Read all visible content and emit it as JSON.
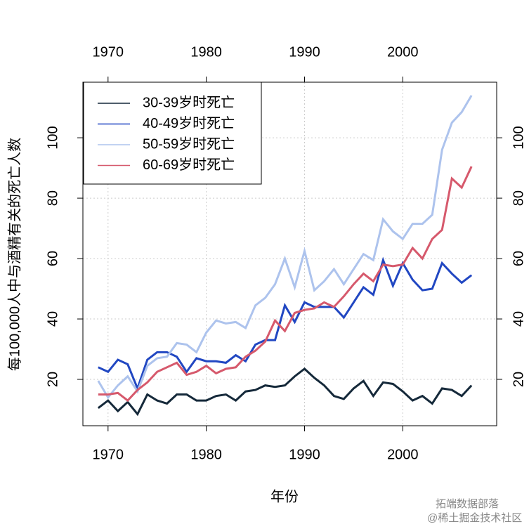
{
  "chart_data": {
    "type": "line",
    "x_label": "年份",
    "y_label": "每100,000人中与酒精有关的死亡人数",
    "x": [
      1969,
      1970,
      1971,
      1972,
      1973,
      1974,
      1975,
      1976,
      1977,
      1978,
      1979,
      1980,
      1981,
      1982,
      1983,
      1984,
      1985,
      1986,
      1987,
      1988,
      1989,
      1990,
      1991,
      1992,
      1993,
      1994,
      1995,
      1996,
      1997,
      1998,
      1999,
      2000,
      2001,
      2002,
      2003,
      2004,
      2005,
      2006,
      2007
    ],
    "series": [
      {
        "name": "30-39岁时死亡",
        "color": "#15293a",
        "values": [
          10.5,
          13,
          9.5,
          12.5,
          8.5,
          15,
          13,
          12,
          15,
          15,
          13,
          13,
          14.5,
          15,
          13,
          16,
          16.5,
          18,
          17.5,
          18,
          21,
          23.5,
          20.5,
          18,
          14.5,
          13.5,
          17,
          19.5,
          14.5,
          19,
          18.5,
          16,
          13,
          14.5,
          12,
          17,
          16.5,
          14.5,
          18
        ]
      },
      {
        "name": "40-49岁时死亡",
        "color": "#2147c2",
        "values": [
          24,
          22.5,
          26.5,
          25,
          17,
          26.5,
          29,
          29,
          27.5,
          22.5,
          27,
          26,
          26,
          25.5,
          28,
          26,
          31.5,
          33,
          33,
          44.5,
          39,
          45.5,
          44,
          44,
          44,
          40.5,
          45.5,
          50.5,
          48,
          59.5,
          51,
          58.5,
          53,
          49.5,
          50,
          58.5,
          55,
          52,
          54.5
        ]
      },
      {
        "name": "50-59岁时死亡",
        "color": "#adc3ed",
        "values": [
          19.5,
          14,
          18,
          21,
          16,
          24.5,
          27,
          27.5,
          32,
          31.5,
          29,
          35.5,
          39.5,
          38.5,
          39,
          37,
          44.5,
          47,
          51.5,
          60,
          50.5,
          62.5,
          49.5,
          52.5,
          56.5,
          51.5,
          56.5,
          61.5,
          59.5,
          73,
          69,
          66.5,
          71.5,
          71.5,
          74.5,
          96,
          105,
          108.5,
          114
        ]
      },
      {
        "name": "60-69岁时死亡",
        "color": "#d6596c",
        "values": [
          15,
          15,
          15.5,
          13,
          16.5,
          19,
          22.5,
          24,
          25.5,
          21.5,
          22.5,
          24.5,
          22,
          23.5,
          24,
          27.5,
          29.5,
          32.5,
          39.5,
          36,
          42,
          43,
          43.5,
          45.5,
          44,
          47.5,
          51.5,
          55,
          52.5,
          58,
          57.5,
          58,
          63.5,
          60,
          66.5,
          69.5,
          86.5,
          83.5,
          90.5
        ]
      }
    ],
    "xlim": [
      1967.44,
      2009.56
    ],
    "xticks": [
      1970,
      1980,
      1990,
      2000
    ],
    "ylim": [
      4.65,
      118.4
    ],
    "yticks": [
      20,
      40,
      60,
      80,
      100
    ],
    "grid": true,
    "legend": "topleft"
  },
  "watermark": [
    "拓端数据部落",
    "@稀土掘金技术社区"
  ]
}
